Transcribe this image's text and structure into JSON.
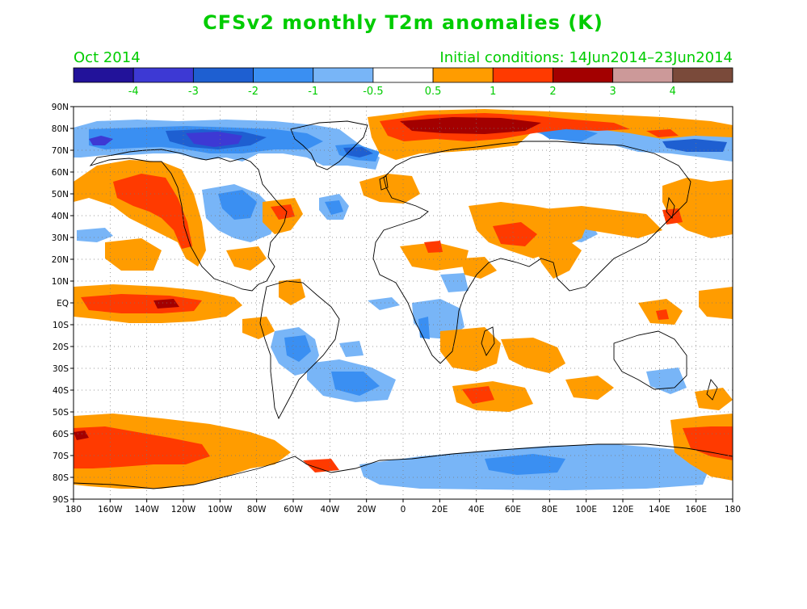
{
  "title": "CFSv2 monthly T2m anomalies (K)",
  "month": "Oct 2014",
  "init": "Initial conditions: 14Jun2014–23Jun2014",
  "colorbar": {
    "colors": [
      "#22129a",
      "#3d39d4",
      "#1e5fd1",
      "#3a8ff2",
      "#78b5f7",
      "#ffffff",
      "#ff9c00",
      "#ff3a00",
      "#a30000",
      "#cc9999",
      "#7a4a3a"
    ],
    "labels": [
      "-4",
      "-3",
      "-2",
      "-1",
      "-0.5",
      "0.5",
      "1",
      "2",
      "3",
      "4"
    ]
  },
  "axes": {
    "lat_labels": [
      "90N",
      "80N",
      "70N",
      "60N",
      "50N",
      "40N",
      "30N",
      "20N",
      "10N",
      "EQ",
      "10S",
      "20S",
      "30S",
      "40S",
      "50S",
      "60S",
      "70S",
      "80S",
      "90S"
    ],
    "lon_labels": [
      "180",
      "160W",
      "140W",
      "120W",
      "100W",
      "80W",
      "60W",
      "40W",
      "20W",
      "0",
      "20E",
      "40E",
      "60E",
      "80E",
      "100E",
      "120E",
      "140E",
      "160E",
      "180"
    ]
  },
  "legend_text_color": "#00cc00"
}
